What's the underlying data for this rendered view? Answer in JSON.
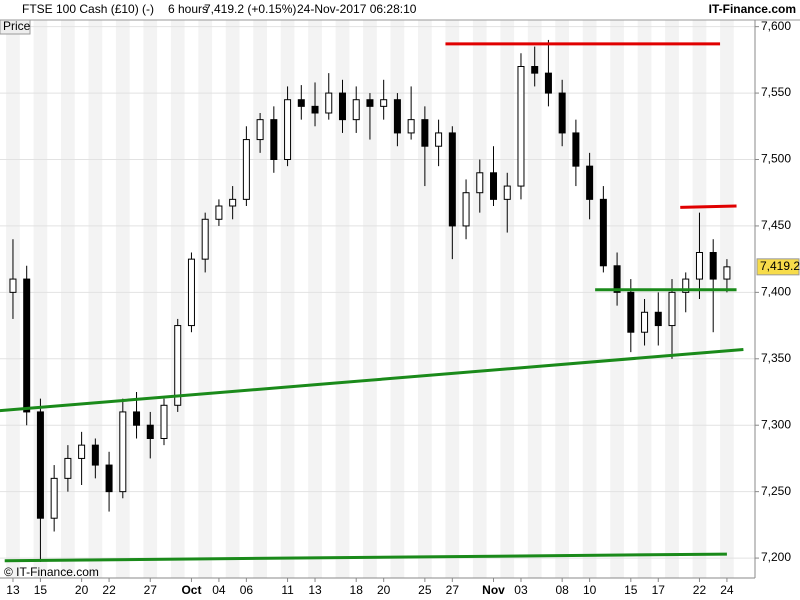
{
  "chart_data": {
    "type": "candlestick",
    "header": {
      "instrument": "FTSE 100 Cash (£10) (-)",
      "interval": "6 hours",
      "quote": "7,419.2 (+0.15%)",
      "timestamp": "24-Nov-2017 06:28:10",
      "brand": "IT-Finance.com"
    },
    "y_label": "Price",
    "copyright": "© IT-Finance.com",
    "categories": [
      "13",
      null,
      "15",
      null,
      null,
      "20",
      null,
      "22",
      null,
      null,
      "27",
      null,
      null,
      "Oct",
      null,
      "04",
      null,
      "06",
      null,
      null,
      "11",
      null,
      "13",
      null,
      null,
      "18",
      null,
      "20",
      null,
      null,
      "25",
      null,
      "27",
      null,
      null,
      "Nov",
      null,
      "03",
      null,
      null,
      "08",
      null,
      "10",
      null,
      null,
      "15",
      null,
      "17",
      null,
      null,
      "22",
      null,
      "24"
    ],
    "open": [
      7400,
      7410,
      7310,
      7230,
      7260,
      7275,
      7285,
      7270,
      7250,
      7310,
      7300,
      7290,
      7315,
      7375,
      7425,
      7455,
      7465,
      7470,
      7515,
      7530,
      7500,
      7545,
      7540,
      7535,
      7550,
      7530,
      7545,
      7540,
      7545,
      7520,
      7530,
      7510,
      7520,
      7450,
      7475,
      7490,
      7470,
      7480,
      7570,
      7565,
      7550,
      7520,
      7495,
      7470,
      7420,
      7400,
      7370,
      7385,
      7375,
      7400,
      7410,
      7430,
      7410
    ],
    "high": [
      7440,
      7420,
      7320,
      7270,
      7285,
      7295,
      7290,
      7280,
      7320,
      7325,
      7310,
      7320,
      7380,
      7430,
      7460,
      7470,
      7480,
      7525,
      7535,
      7540,
      7555,
      7556,
      7558,
      7565,
      7560,
      7555,
      7550,
      7560,
      7550,
      7555,
      7540,
      7530,
      7525,
      7485,
      7500,
      7510,
      7490,
      7580,
      7585,
      7590,
      7560,
      7530,
      7505,
      7480,
      7430,
      7410,
      7395,
      7400,
      7410,
      7415,
      7460,
      7440,
      7425
    ],
    "low": [
      7380,
      7300,
      7197,
      7220,
      7250,
      7255,
      7260,
      7235,
      7245,
      7290,
      7275,
      7285,
      7310,
      7370,
      7415,
      7450,
      7455,
      7465,
      7505,
      7490,
      7495,
      7530,
      7525,
      7530,
      7520,
      7520,
      7515,
      7530,
      7510,
      7515,
      7480,
      7495,
      7425,
      7440,
      7460,
      7465,
      7445,
      7470,
      7555,
      7540,
      7510,
      7480,
      7455,
      7415,
      7390,
      7355,
      7360,
      7360,
      7350,
      7385,
      7395,
      7370,
      7400
    ],
    "close": [
      7410,
      7310,
      7230,
      7260,
      7275,
      7285,
      7270,
      7250,
      7310,
      7300,
      7290,
      7315,
      7375,
      7425,
      7455,
      7465,
      7470,
      7515,
      7530,
      7500,
      7545,
      7540,
      7535,
      7550,
      7530,
      7545,
      7540,
      7545,
      7520,
      7530,
      7510,
      7520,
      7450,
      7475,
      7490,
      7470,
      7480,
      7570,
      7565,
      7550,
      7520,
      7495,
      7470,
      7420,
      7400,
      7370,
      7385,
      7375,
      7400,
      7410,
      7430,
      7410,
      7419.2
    ],
    "up_color": "#ffffff",
    "down_color": "#000000",
    "ylim": [
      7185,
      7605
    ],
    "yticks": [
      {
        "value": 7200,
        "label": "7,200"
      },
      {
        "value": 7250,
        "label": "7,250"
      },
      {
        "value": 7300,
        "label": "7,300"
      },
      {
        "value": 7350,
        "label": "7,350"
      },
      {
        "value": 7400,
        "label": "7,400"
      },
      {
        "value": 7450,
        "label": "7,450"
      },
      {
        "value": 7500,
        "label": "7,500"
      },
      {
        "value": 7550,
        "label": "7,550"
      },
      {
        "value": 7600,
        "label": "7,600"
      }
    ],
    "grid": true,
    "last_price": {
      "value": 7419.2,
      "label": "7,419.2"
    },
    "trend_lines": [
      {
        "color": "#e00000",
        "x": [
          31.5,
          51.5
        ],
        "y": [
          7587,
          7587
        ]
      },
      {
        "color": "#e00000",
        "x": [
          48.6,
          52.7
        ],
        "y": [
          7464,
          7465
        ]
      },
      {
        "color": "#1a8a1a",
        "x": [
          42.4,
          52.7
        ],
        "y": [
          7402,
          7402
        ]
      },
      {
        "color": "#1a8a1a",
        "x": [
          -0.95,
          53.2
        ],
        "y": [
          7311,
          7357
        ]
      },
      {
        "color": "#1a8a1a",
        "x": [
          -0.6,
          52.0
        ],
        "y": [
          7198,
          7203
        ]
      }
    ]
  }
}
